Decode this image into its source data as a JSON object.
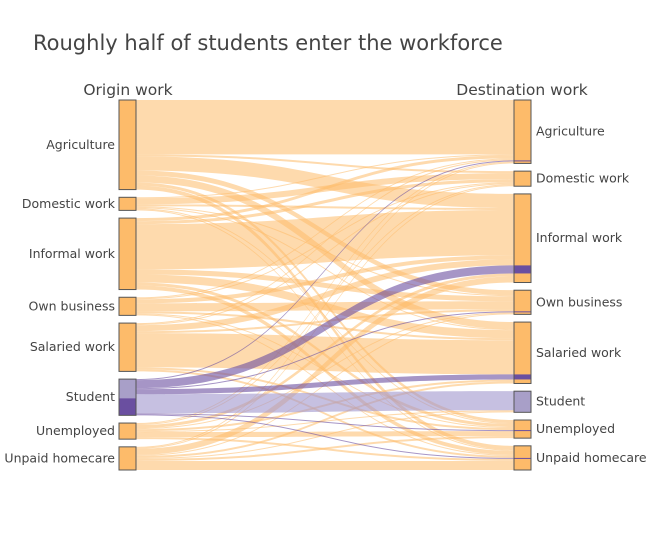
{
  "chart_data": {
    "type": "sankey",
    "title": "Roughly half of students enter the workforce",
    "origin_column_label": "Origin work",
    "destination_column_label": "Destination work",
    "categories": [
      "Agriculture",
      "Domestic work",
      "Informal work",
      "Own business",
      "Salaried work",
      "Student",
      "Unemployed",
      "Unpaid homecare"
    ],
    "links": [
      [
        54,
        2,
        14,
        5,
        7,
        0,
        3,
        4
      ],
      [
        1,
        6,
        2,
        1,
        1,
        0,
        1,
        1
      ],
      [
        3,
        3,
        45,
        5,
        8,
        0,
        3,
        4
      ],
      [
        1,
        1,
        4,
        8,
        2,
        0,
        1,
        1
      ],
      [
        1,
        1,
        6,
        2,
        34,
        0,
        2,
        2
      ],
      [
        1,
        0,
        8,
        1,
        5,
        19,
        1,
        1
      ],
      [
        1,
        1,
        3,
        1,
        2,
        1,
        5,
        2
      ],
      [
        1,
        1,
        6,
        1,
        2,
        1,
        2,
        9
      ]
    ],
    "links_note_rows": "origin (rows) to destination (columns), in category order",
    "colors": {
      "node": "#fdbb6a",
      "node_border": "#555555",
      "link": "rgba(253,187,106,0.55)",
      "student_link": "rgba(106,79,160,0.6)",
      "student_stay_link": "rgba(160,150,205,0.6)",
      "student_dark": "#6a4fa0",
      "student_light": "#a89fc8"
    }
  }
}
